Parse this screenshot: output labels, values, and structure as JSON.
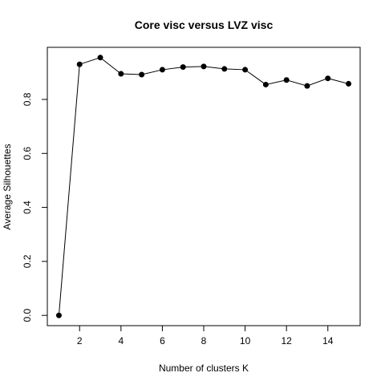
{
  "chart_data": {
    "type": "line",
    "title": "Core visc versus LVZ visc",
    "xlabel": "Number of clusters K",
    "ylabel": "Average Silhouettes",
    "x": [
      1,
      2,
      3,
      4,
      5,
      6,
      7,
      8,
      9,
      10,
      11,
      12,
      13,
      14,
      15
    ],
    "series": [
      {
        "values": [
          0.0,
          0.93,
          0.955,
          0.895,
          0.892,
          0.91,
          0.92,
          0.922,
          0.913,
          0.91,
          0.855,
          0.872,
          0.85,
          0.878,
          0.858
        ]
      }
    ],
    "xlim": [
      0.44,
      15.56
    ],
    "ylim": [
      -0.038,
      0.993
    ],
    "x_ticks": [
      2,
      4,
      6,
      8,
      10,
      12,
      14
    ],
    "y_ticks": [
      0.0,
      0.2,
      0.4,
      0.6,
      0.8
    ],
    "x_tick_labels": [
      "2",
      "4",
      "6",
      "8",
      "10",
      "12",
      "14"
    ],
    "y_tick_labels": [
      "0.0",
      "0.2",
      "0.4",
      "0.6",
      "0.8"
    ],
    "grid": false,
    "legend": "none",
    "marker": "filled-circle",
    "line_color": "#000000",
    "marker_color": "#000000"
  }
}
